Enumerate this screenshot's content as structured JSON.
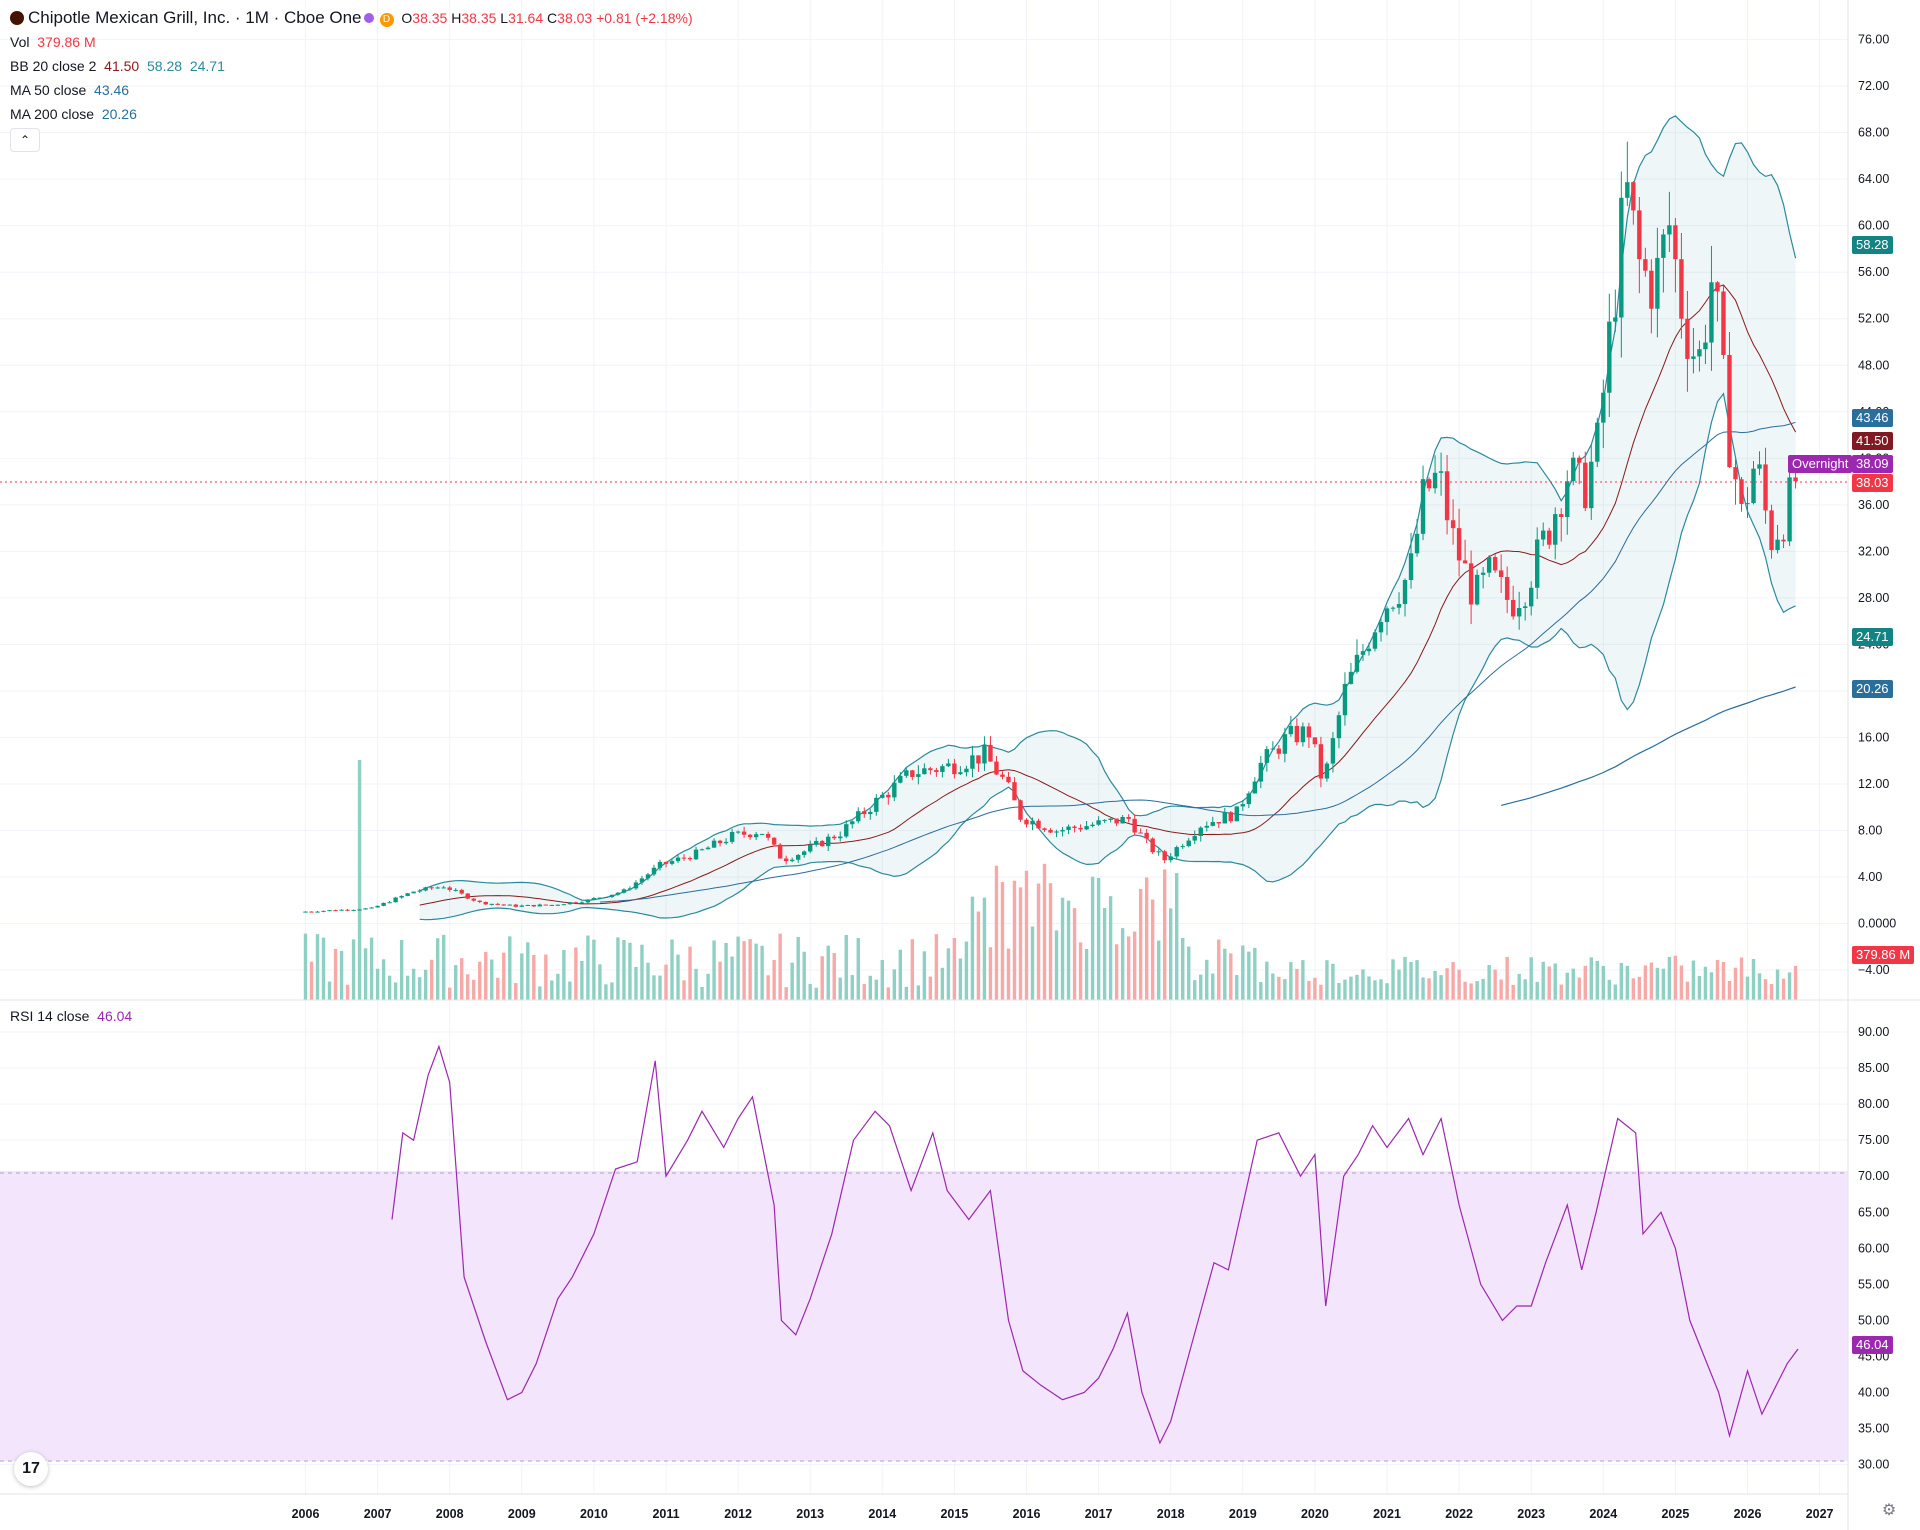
{
  "header": {
    "title": "Chipotle Mexican Grill, Inc. · 1M · Cboe One",
    "d_badge": "D",
    "ohlc": {
      "o_label": "O",
      "o": "38.35",
      "h_label": "H",
      "h": "38.35",
      "l_label": "L",
      "l": "31.64",
      "c_label": "C",
      "c": "38.03",
      "chg": "+0.81 (+2.18%)"
    }
  },
  "legend": {
    "vol": {
      "label": "Vol",
      "value": "379.86 M"
    },
    "bb": {
      "label": "BB 20 close 2",
      "basis": "41.50",
      "upper": "58.28",
      "lower": "24.71"
    },
    "ma50": {
      "label": "MA 50 close",
      "value": "43.46"
    },
    "ma200": {
      "label": "MA 200 close",
      "value": "20.26"
    },
    "collapse_glyph": "⌃"
  },
  "rsi_legend": {
    "label": "RSI 14 close",
    "value": "46.04"
  },
  "price_labels": {
    "bb_upper": "58.28",
    "ma50": "43.46",
    "bb_basis": "41.50",
    "overnight_label": "Overnight",
    "overnight_price": "38.09",
    "last": "38.03",
    "bb_lower": "24.71",
    "ma200": "20.26",
    "volume": "379.86 M",
    "rsi": "46.04"
  },
  "colors": {
    "up": "#089981",
    "down": "#f23645",
    "vol_up": "#8fd0c4",
    "vol_down": "#f7a9a7",
    "bb": "#2a8a9c",
    "basis": "#8b1a1a",
    "ma50": "#2962ff",
    "ma200": "#2a6e9c",
    "rsi": "#9c27b0",
    "rsi_band": "#f3e5fb"
  },
  "tv_logo": "17",
  "settings_icon": "gear-icon",
  "chart_data": [
    {
      "type": "candlestick",
      "title": "Chipotle Mexican Grill, Inc. · 1M · Cboe One",
      "x_ticks": [
        "2006",
        "2007",
        "2008",
        "2009",
        "2010",
        "2011",
        "2012",
        "2013",
        "2014",
        "2015",
        "2016",
        "2017",
        "2018",
        "2019",
        "2020",
        "2021",
        "2022",
        "2023",
        "2024",
        "2025",
        "2026",
        "2027"
      ],
      "y_ticks": [
        "76.00",
        "72.00",
        "68.00",
        "64.00",
        "60.00",
        "56.00",
        "52.00",
        "48.00",
        "44.00",
        "40.00",
        "36.00",
        "32.00",
        "28.00",
        "24.00",
        "20.00",
        "16.00",
        "12.00",
        "8.00",
        "4.00",
        "0.0000",
        "−4.00"
      ],
      "ylim": [
        -6.6,
        78.2
      ],
      "grid": true,
      "price_anchors": [
        [
          2006.0,
          1.0
        ],
        [
          2007.0,
          1.3
        ],
        [
          2007.6,
          2.8
        ],
        [
          2008.0,
          3.2
        ],
        [
          2008.5,
          1.8
        ],
        [
          2009.0,
          1.5
        ],
        [
          2009.5,
          1.6
        ],
        [
          2010.0,
          2.0
        ],
        [
          2010.5,
          2.8
        ],
        [
          2011.0,
          5.0
        ],
        [
          2011.5,
          6.0
        ],
        [
          2012.0,
          7.5
        ],
        [
          2012.4,
          8.0
        ],
        [
          2012.7,
          5.5
        ],
        [
          2013.0,
          6.2
        ],
        [
          2013.5,
          7.8
        ],
        [
          2014.0,
          10.5
        ],
        [
          2014.5,
          13.0
        ],
        [
          2015.0,
          13.5
        ],
        [
          2015.5,
          14.5
        ],
        [
          2015.8,
          12.0
        ],
        [
          2016.0,
          9.2
        ],
        [
          2016.5,
          8.0
        ],
        [
          2017.0,
          8.5
        ],
        [
          2017.5,
          9.0
        ],
        [
          2017.8,
          6.5
        ],
        [
          2018.0,
          5.5
        ],
        [
          2018.5,
          8.5
        ],
        [
          2019.0,
          9.5
        ],
        [
          2019.3,
          13.5
        ],
        [
          2019.7,
          16.0
        ],
        [
          2020.0,
          16.5
        ],
        [
          2020.2,
          12.0
        ],
        [
          2020.5,
          20.0
        ],
        [
          2021.0,
          27.0
        ],
        [
          2021.4,
          30.0
        ],
        [
          2021.6,
          37.0
        ],
        [
          2021.8,
          38.5
        ],
        [
          2022.0,
          33.0
        ],
        [
          2022.3,
          28.0
        ],
        [
          2022.5,
          30.0
        ],
        [
          2022.8,
          27.5
        ],
        [
          2023.0,
          29.0
        ],
        [
          2023.3,
          33.5
        ],
        [
          2023.6,
          39.0
        ],
        [
          2023.8,
          37.0
        ],
        [
          2024.0,
          41.0
        ],
        [
          2024.2,
          52.0
        ],
        [
          2024.4,
          63.0
        ],
        [
          2024.6,
          56.0
        ],
        [
          2024.8,
          55.0
        ],
        [
          2025.0,
          60.0
        ],
        [
          2025.2,
          52.0
        ],
        [
          2025.4,
          48.0
        ],
        [
          2025.6,
          56.0
        ],
        [
          2025.8,
          43.0
        ],
        [
          2026.0,
          35.0
        ],
        [
          2026.2,
          40.0
        ],
        [
          2026.4,
          33.0
        ],
        [
          2026.6,
          35.0
        ],
        [
          2026.75,
          38.03
        ]
      ]
    },
    {
      "type": "line",
      "title": "RSI 14 close",
      "y_ticks": [
        "90.00",
        "85.00",
        "80.00",
        "75.00",
        "70.00",
        "65.00",
        "60.00",
        "55.00",
        "50.00",
        "45.00",
        "40.00",
        "35.00",
        "30.00"
      ],
      "ylim": [
        28.5,
        91.5
      ],
      "band": [
        30,
        70
      ],
      "series": [
        {
          "name": "RSI",
          "points": [
            [
              2007.2,
              64
            ],
            [
              2007.35,
              76
            ],
            [
              2007.5,
              75
            ],
            [
              2007.7,
              84
            ],
            [
              2007.85,
              88
            ],
            [
              2008.0,
              83
            ],
            [
              2008.2,
              56
            ],
            [
              2008.5,
              47
            ],
            [
              2008.8,
              39
            ],
            [
              2009.0,
              40
            ],
            [
              2009.2,
              44
            ],
            [
              2009.5,
              53
            ],
            [
              2009.7,
              56
            ],
            [
              2010.0,
              62
            ],
            [
              2010.3,
              71
            ],
            [
              2010.6,
              72
            ],
            [
              2010.85,
              86
            ],
            [
              2011.0,
              70
            ],
            [
              2011.3,
              75
            ],
            [
              2011.5,
              79
            ],
            [
              2011.8,
              74
            ],
            [
              2012.0,
              78
            ],
            [
              2012.2,
              81
            ],
            [
              2012.5,
              66
            ],
            [
              2012.6,
              50
            ],
            [
              2012.8,
              48
            ],
            [
              2013.0,
              53
            ],
            [
              2013.3,
              62
            ],
            [
              2013.6,
              75
            ],
            [
              2013.9,
              79
            ],
            [
              2014.1,
              77
            ],
            [
              2014.4,
              68
            ],
            [
              2014.7,
              76
            ],
            [
              2014.9,
              68
            ],
            [
              2015.2,
              64
            ],
            [
              2015.5,
              68
            ],
            [
              2015.75,
              50
            ],
            [
              2015.95,
              43
            ],
            [
              2016.2,
              41
            ],
            [
              2016.5,
              39
            ],
            [
              2016.8,
              40
            ],
            [
              2017.0,
              42
            ],
            [
              2017.2,
              46
            ],
            [
              2017.4,
              51
            ],
            [
              2017.6,
              40
            ],
            [
              2017.85,
              33
            ],
            [
              2018.0,
              36
            ],
            [
              2018.3,
              47
            ],
            [
              2018.6,
              58
            ],
            [
              2018.8,
              57
            ],
            [
              2019.0,
              66
            ],
            [
              2019.2,
              75
            ],
            [
              2019.5,
              76
            ],
            [
              2019.8,
              70
            ],
            [
              2020.0,
              73
            ],
            [
              2020.15,
              52
            ],
            [
              2020.4,
              70
            ],
            [
              2020.6,
              73
            ],
            [
              2020.8,
              77
            ],
            [
              2021.0,
              74
            ],
            [
              2021.3,
              78
            ],
            [
              2021.5,
              73
            ],
            [
              2021.75,
              78
            ],
            [
              2022.0,
              66
            ],
            [
              2022.3,
              55
            ],
            [
              2022.6,
              50
            ],
            [
              2022.8,
              52
            ],
            [
              2023.0,
              52
            ],
            [
              2023.2,
              58
            ],
            [
              2023.5,
              66
            ],
            [
              2023.7,
              57
            ],
            [
              2023.9,
              65
            ],
            [
              2024.2,
              78
            ],
            [
              2024.45,
              76
            ],
            [
              2024.55,
              62
            ],
            [
              2024.8,
              65
            ],
            [
              2025.0,
              60
            ],
            [
              2025.2,
              50
            ],
            [
              2025.4,
              45
            ],
            [
              2025.6,
              40
            ],
            [
              2025.75,
              34
            ],
            [
              2026.0,
              43
            ],
            [
              2026.2,
              37
            ],
            [
              2026.4,
              41
            ],
            [
              2026.55,
              44
            ],
            [
              2026.7,
              46.04
            ]
          ]
        }
      ]
    }
  ]
}
